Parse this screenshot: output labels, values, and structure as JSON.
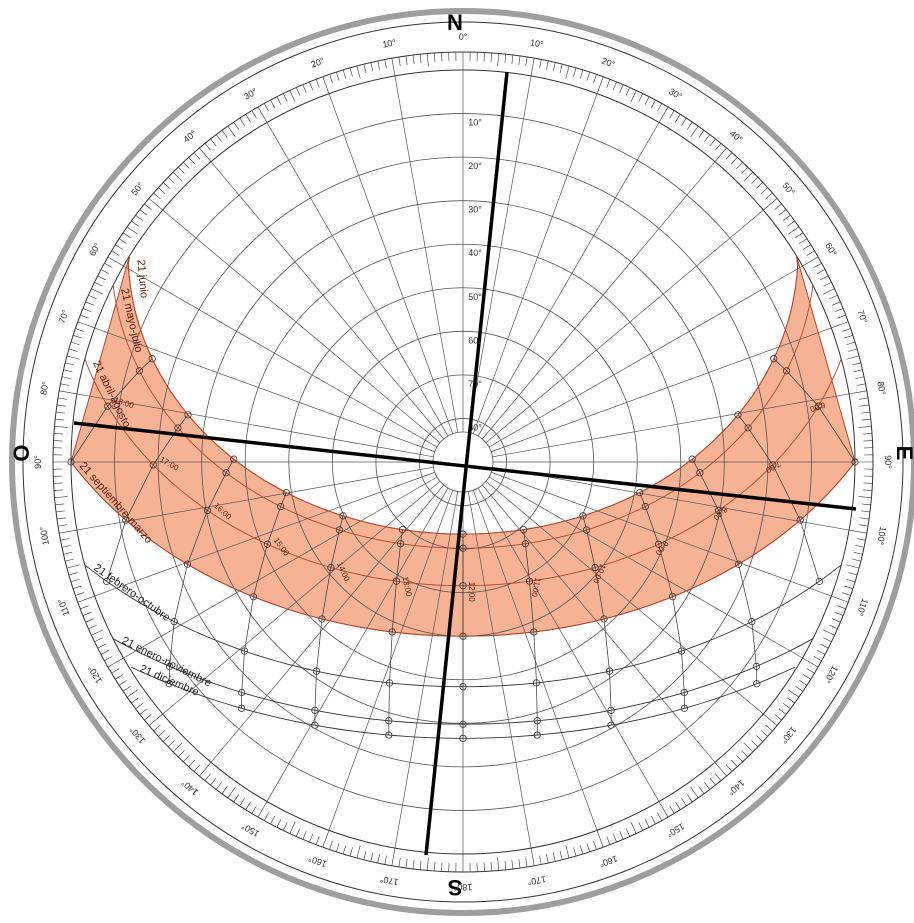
{
  "compass": {
    "north": "N",
    "south": "S",
    "east": "E",
    "west": "O"
  },
  "azimuth_labels": [
    "0°",
    "10°",
    "20°",
    "30°",
    "40°",
    "50°",
    "60°",
    "70°",
    "80°",
    "90°",
    "100°",
    "110°",
    "120°",
    "130°",
    "140°",
    "150°",
    "160°",
    "170°",
    "180°",
    "170°",
    "160°",
    "150°",
    "140°",
    "130°",
    "120°",
    "110°",
    "100°",
    "90°",
    "80°",
    "70°",
    "60°",
    "50°",
    "40°",
    "30°",
    "20°",
    "10°"
  ],
  "altitude_labels": [
    "10°",
    "20°",
    "30°",
    "40°",
    "50°",
    "60°",
    "70°",
    "80°"
  ],
  "date_curves": [
    {
      "label": "21 junio"
    },
    {
      "label": "21 mayo-julio"
    },
    {
      "label": "21 abril-agosto"
    },
    {
      "label": "21 septiembre-marzo"
    },
    {
      "label": "21 febrero-octubre"
    },
    {
      "label": "21 enero-noviembre"
    },
    {
      "label": "21 diciembre"
    }
  ],
  "hour_labels": [
    "6:00",
    "7:00",
    "8:00",
    "9:00",
    "10:00",
    "11:00",
    "12:00",
    "13:00",
    "14:00",
    "15:00",
    "16:00",
    "17:00",
    "18:00"
  ],
  "colors": {
    "sun_band": "#f4a582",
    "sun_band_stroke": "#b2452a",
    "grid": "#555555",
    "outer_ring": "#9e9e9e",
    "orientation_lines": "#000000"
  }
}
